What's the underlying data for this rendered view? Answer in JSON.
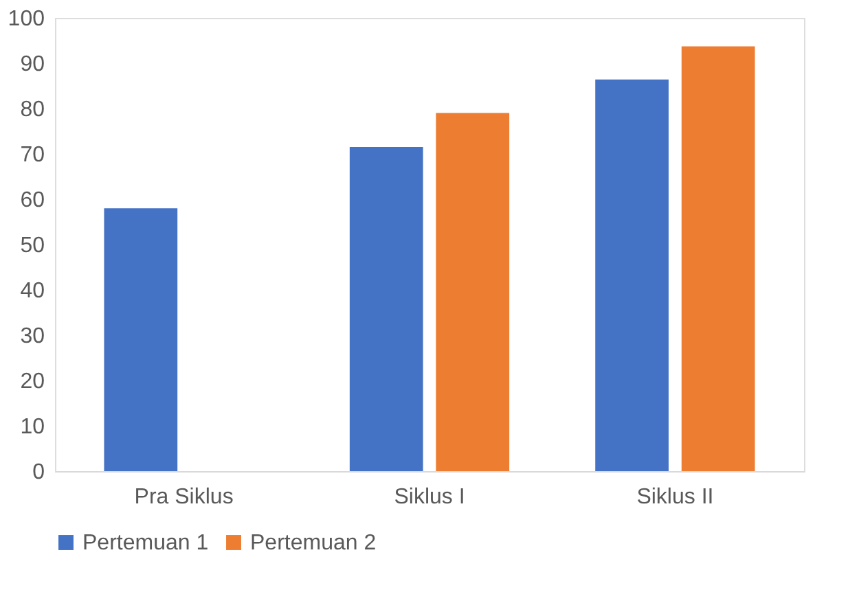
{
  "chart_data": {
    "type": "bar",
    "categories": [
      "Pra Siklus",
      "Siklus I",
      "Siklus II"
    ],
    "series": [
      {
        "name": "Pertemuan 1",
        "color": "#4472c4",
        "values": [
          58,
          71.5,
          86.4
        ]
      },
      {
        "name": "Pertemuan 2",
        "color": "#ed7d31",
        "values": [
          null,
          79,
          93.7
        ]
      }
    ],
    "ylim": [
      0,
      100
    ],
    "yticks": [
      0,
      10,
      20,
      30,
      40,
      50,
      60,
      70,
      80,
      90,
      100
    ],
    "grid": false,
    "legend": "bottom"
  }
}
